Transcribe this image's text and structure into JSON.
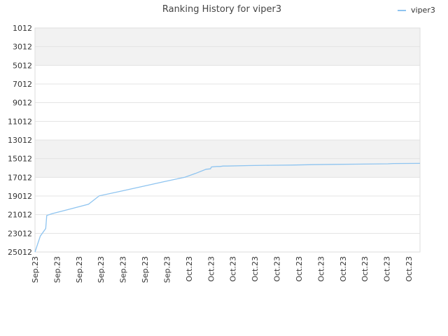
{
  "chart_data": {
    "type": "line",
    "title": "Ranking History for viper3",
    "xlabel": "",
    "ylabel": "",
    "y_inverted": true,
    "ylim": [
      1012,
      25012
    ],
    "y_ticks": [
      1012,
      3012,
      5012,
      7012,
      9012,
      11012,
      13012,
      15012,
      17012,
      19012,
      21012,
      23012,
      25012
    ],
    "x_tick_labels": [
      "Sep.23",
      "Sep.23",
      "Sep.23",
      "Sep.23",
      "Sep.23",
      "Sep.23",
      "Sep.23",
      "Oct.23",
      "Oct.23",
      "Oct.23",
      "Oct.23",
      "Oct.23",
      "Oct.23",
      "Oct.23",
      "Oct.23",
      "Oct.23",
      "Oct.23",
      "Oct.23"
    ],
    "grid": true,
    "alternating_bands": true,
    "legend_position": "top-right",
    "series": [
      {
        "name": "viper3",
        "color": "#8ec4f0",
        "points": [
          [
            0.0,
            25012
          ],
          [
            0.5,
            23300
          ],
          [
            1.0,
            22500
          ],
          [
            1.1,
            21100
          ],
          [
            1.6,
            20900
          ],
          [
            3.0,
            20500
          ],
          [
            5.0,
            19900
          ],
          [
            6.0,
            19000
          ],
          [
            8.0,
            18500
          ],
          [
            10.0,
            18000
          ],
          [
            12.0,
            17500
          ],
          [
            14.0,
            17000
          ],
          [
            15.0,
            16600
          ],
          [
            16.0,
            16150
          ],
          [
            16.4,
            16100
          ],
          [
            16.5,
            15900
          ],
          [
            17.0,
            15850
          ],
          [
            17.3,
            15850
          ],
          [
            17.6,
            15800
          ],
          [
            18.0,
            15800
          ],
          [
            20.0,
            15750
          ],
          [
            22.0,
            15720
          ],
          [
            24.0,
            15700
          ],
          [
            26.0,
            15650
          ],
          [
            28.0,
            15620
          ],
          [
            30.0,
            15600
          ],
          [
            33.0,
            15560
          ],
          [
            33.5,
            15530
          ],
          [
            36.0,
            15520
          ]
        ]
      }
    ]
  }
}
